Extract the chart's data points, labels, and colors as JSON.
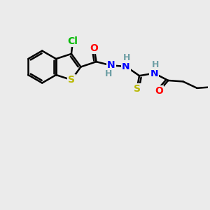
{
  "bg_color": "#ebebeb",
  "atom_colors": {
    "C": "#000000",
    "H": "#6e9fa5",
    "N": "#0000ff",
    "O": "#ff0000",
    "S": "#b8b800",
    "Cl": "#00bb00"
  },
  "bond_color": "#000000",
  "bond_width": 1.8,
  "font_size": 9.5
}
